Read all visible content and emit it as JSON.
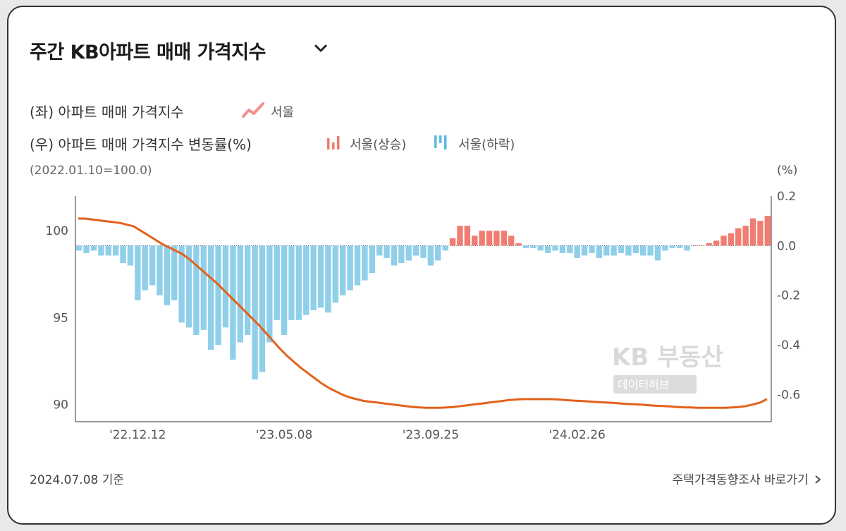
{
  "header": {
    "title": "주간 KB아파트 매매 가격지수",
    "dropdown_icon": "chevron-down-icon"
  },
  "legend": {
    "left_axis_label": "(좌) 아파트 매매 가격지수",
    "left_series": "서울",
    "right_axis_label": "(우) 아파트 매매 가격지수 변동률(%)",
    "right_series_up": "서울(상승)",
    "right_series_down": "서울(하락)"
  },
  "base_note": "(2022.01.10=100.0)",
  "unit_note": "(%)",
  "watermark": {
    "brand": "KB 부동산",
    "sub": "데이터허브"
  },
  "footer": {
    "as_of": "2024.07.08 기준",
    "link": "주택가격동향조사 바로가기"
  },
  "colors": {
    "index_line": "#e2621b",
    "bar_up": "#f07c72",
    "bar_down": "#8fcfea",
    "legend_up": "#f07c72",
    "legend_down": "#5bb8e6",
    "legend_line": "#f28f8f"
  },
  "chart_data": {
    "type": "bar+line",
    "x_ticks": [
      "'22.12.12",
      "'23.05.08",
      "'23.09.25",
      "'24.02.26"
    ],
    "x_tick_bar_index": [
      8,
      28,
      48,
      68
    ],
    "y_left": {
      "ticks": [
        100,
        95,
        90
      ],
      "range": [
        89,
        102
      ]
    },
    "y_right": {
      "ticks": [
        0.2,
        0.0,
        -0.2,
        -0.4,
        -0.6
      ],
      "range": [
        -0.71,
        0.2
      ]
    },
    "series": [
      {
        "name": "서울",
        "axis": "left",
        "kind": "line",
        "values": [
          100.7,
          100.7,
          100.65,
          100.6,
          100.55,
          100.5,
          100.45,
          100.35,
          100.25,
          100.0,
          99.75,
          99.5,
          99.25,
          99.05,
          98.85,
          98.65,
          98.35,
          98.0,
          97.65,
          97.3,
          96.95,
          96.55,
          96.15,
          95.75,
          95.35,
          94.95,
          94.55,
          94.1,
          93.65,
          93.2,
          92.8,
          92.45,
          92.1,
          91.8,
          91.5,
          91.2,
          90.95,
          90.75,
          90.55,
          90.4,
          90.3,
          90.2,
          90.15,
          90.1,
          90.05,
          90.0,
          89.95,
          89.9,
          89.85,
          89.82,
          89.8,
          89.8,
          89.8,
          89.82,
          89.85,
          89.9,
          89.95,
          90.0,
          90.05,
          90.1,
          90.15,
          90.2,
          90.25,
          90.28,
          90.3,
          90.3,
          90.3,
          90.3,
          90.3,
          90.28,
          90.25,
          90.22,
          90.2,
          90.18,
          90.15,
          90.12,
          90.1,
          90.08,
          90.05,
          90.02,
          90.0,
          89.98,
          89.95,
          89.92,
          89.9,
          89.88,
          89.85,
          89.83,
          89.82,
          89.8,
          89.8,
          89.8,
          89.8,
          89.8,
          89.82,
          89.85,
          89.9,
          90.0,
          90.1,
          90.3
        ]
      },
      {
        "name": "서울(상승)/서울(하락)",
        "axis": "right",
        "kind": "bar",
        "values": [
          -0.02,
          -0.03,
          -0.02,
          -0.04,
          -0.04,
          -0.04,
          -0.07,
          -0.08,
          -0.22,
          -0.18,
          -0.16,
          -0.2,
          -0.24,
          -0.22,
          -0.31,
          -0.33,
          -0.36,
          -0.34,
          -0.42,
          -0.4,
          -0.33,
          -0.46,
          -0.39,
          -0.36,
          -0.54,
          -0.51,
          -0.39,
          -0.3,
          -0.36,
          -0.3,
          -0.3,
          -0.28,
          -0.26,
          -0.25,
          -0.27,
          -0.23,
          -0.2,
          -0.18,
          -0.16,
          -0.14,
          -0.11,
          -0.04,
          -0.05,
          -0.08,
          -0.07,
          -0.06,
          -0.04,
          -0.05,
          -0.08,
          -0.06,
          -0.02,
          0.03,
          0.08,
          0.08,
          0.04,
          0.06,
          0.06,
          0.06,
          0.06,
          0.04,
          0.01,
          -0.01,
          -0.01,
          -0.02,
          -0.03,
          -0.02,
          -0.03,
          -0.03,
          -0.05,
          -0.04,
          -0.03,
          -0.05,
          -0.04,
          -0.04,
          -0.03,
          -0.04,
          -0.03,
          -0.04,
          -0.04,
          -0.06,
          -0.02,
          -0.01,
          -0.01,
          -0.02,
          0.0,
          0.0,
          0.01,
          0.02,
          0.04,
          0.05,
          0.07,
          0.08,
          0.11,
          0.1,
          0.12
        ]
      }
    ]
  }
}
